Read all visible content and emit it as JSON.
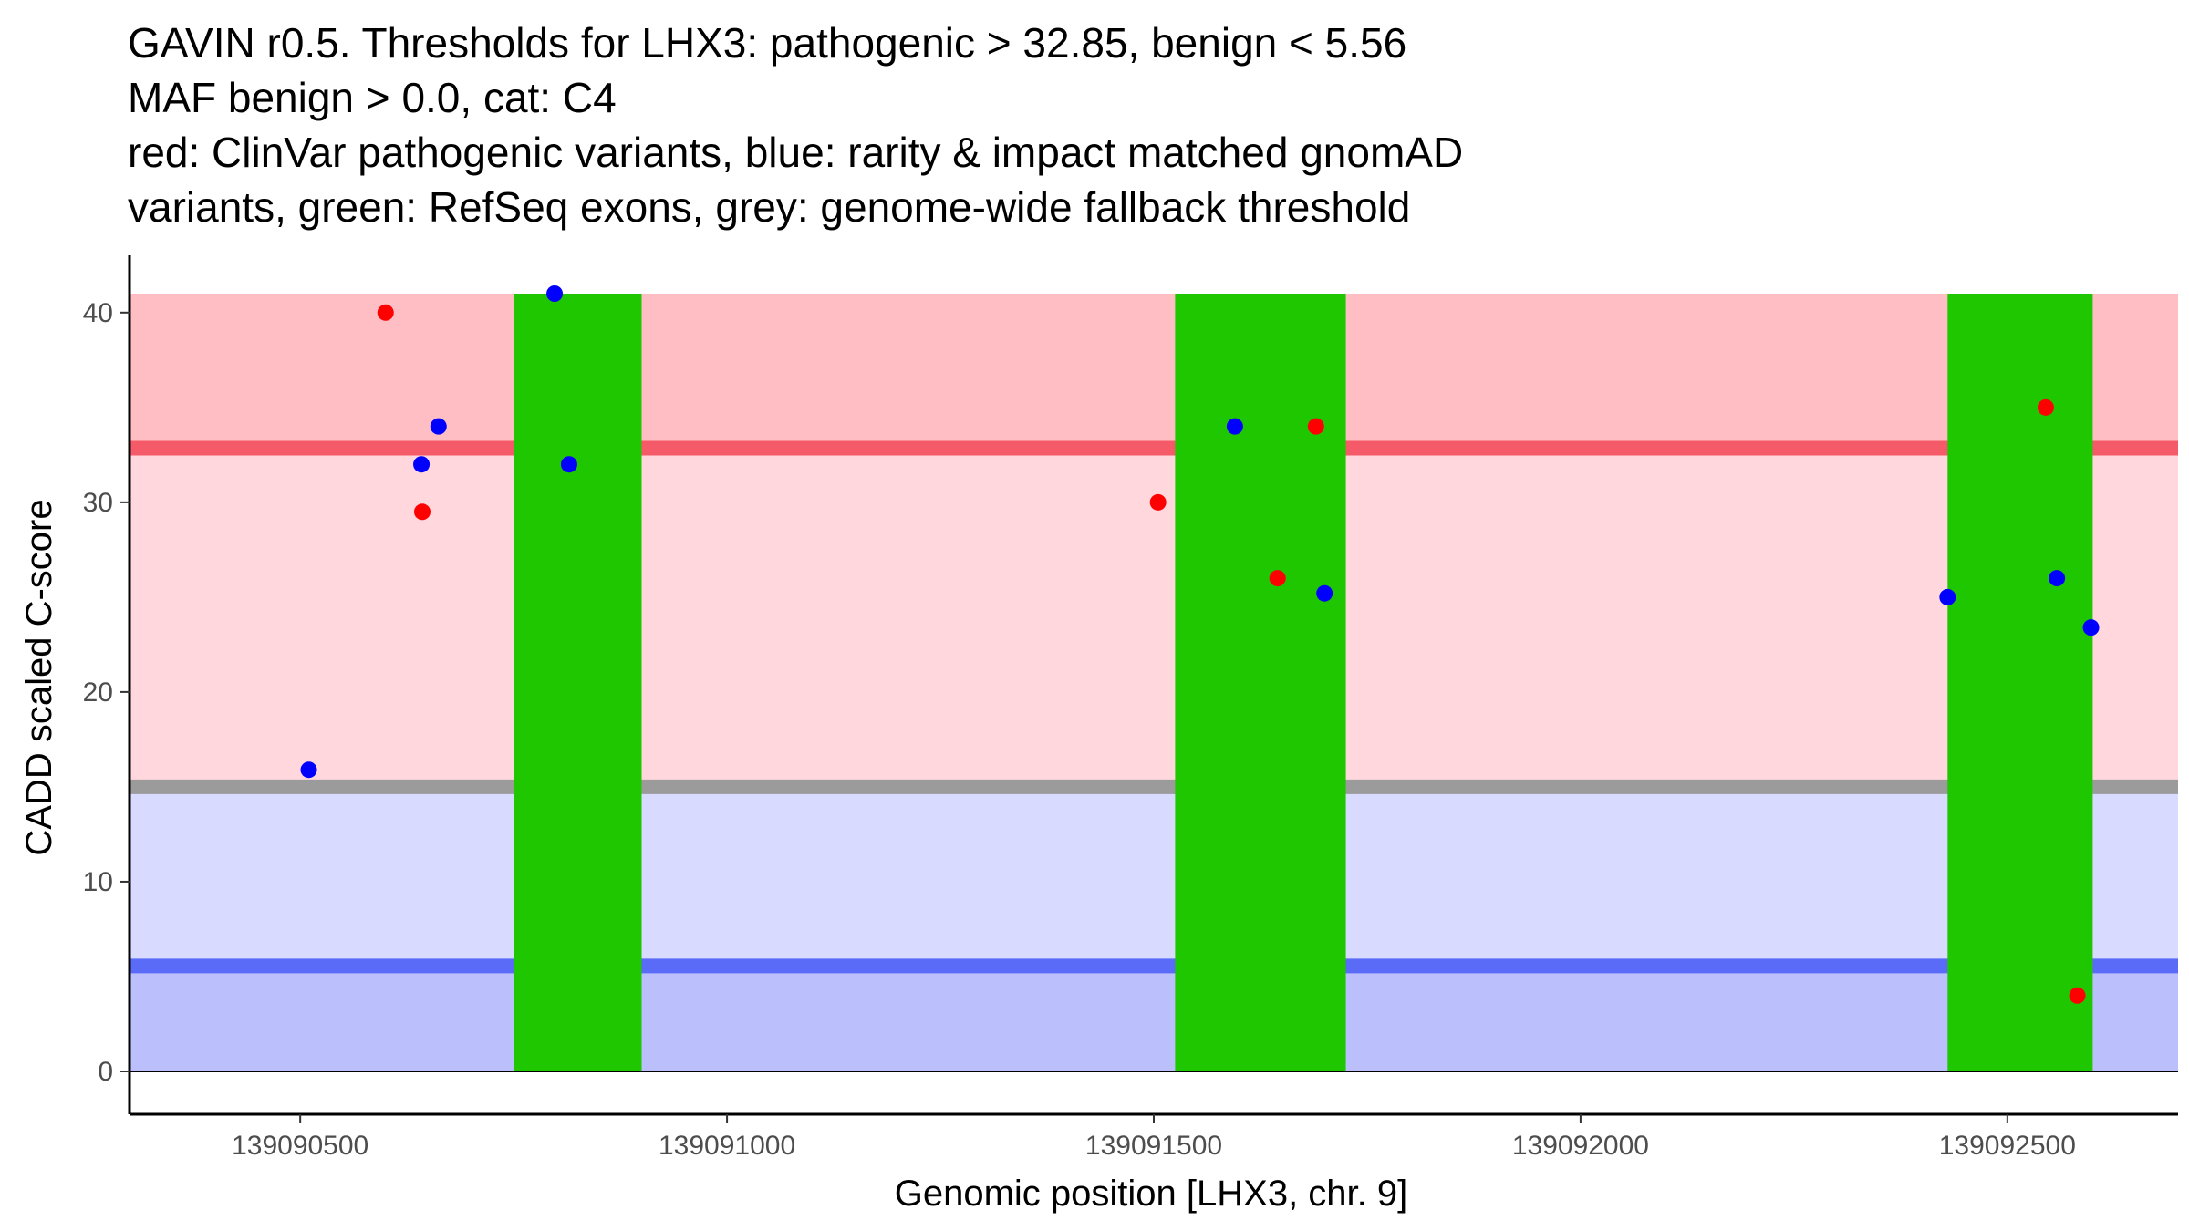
{
  "title_lines": [
    "GAVIN r0.5. Thresholds for LHX3: pathogenic > 32.85, benign < 5.56",
    "MAF benign > 0.0, cat: C4",
    "red: ClinVar pathogenic variants, blue: rarity & impact matched gnomAD",
    "variants, green: RefSeq exons, grey: genome-wide fallback threshold"
  ],
  "chart_data": {
    "type": "scatter",
    "xlabel": "Genomic position [LHX3, chr. 9]",
    "ylabel": "CADD scaled C-score",
    "xlim": [
      139090300,
      139092700
    ],
    "ylim": [
      0,
      41
    ],
    "x_ticks": [
      139090500,
      139091000,
      139091500,
      139092000,
      139092500
    ],
    "x_tick_labels": [
      "139090500",
      "139091000",
      "139091500",
      "139092000",
      "139092500"
    ],
    "y_ticks": [
      0,
      10,
      20,
      30,
      40
    ],
    "y_tick_labels": [
      "0",
      "10",
      "20",
      "30",
      "40"
    ],
    "thresholds": {
      "pathogenic": 32.85,
      "benign": 5.56,
      "genome_wide_fallback": 15.0
    },
    "bands": [
      {
        "name": "pathogenic-zone",
        "y0": 32.85,
        "y1": 41,
        "color": "#ffbdc4"
      },
      {
        "name": "between-zone",
        "y0": 15.0,
        "y1": 32.85,
        "color": "#ffd7dc"
      },
      {
        "name": "benign-fallback-zone",
        "y0": 5.56,
        "y1": 15.0,
        "color": "#d8daff"
      },
      {
        "name": "benign-zone",
        "y0": 0,
        "y1": 5.56,
        "color": "#bbbffc"
      }
    ],
    "threshold_lines": [
      {
        "name": "pathogenic-threshold-line",
        "y": 32.85,
        "color": "#f55a69"
      },
      {
        "name": "fallback-threshold-line",
        "y": 15.0,
        "color": "#9b9b9b"
      },
      {
        "name": "benign-threshold-line",
        "y": 5.56,
        "color": "#5a6cf7"
      }
    ],
    "exons": [
      {
        "start": 139090750,
        "end": 139090900
      },
      {
        "start": 139091525,
        "end": 139091725
      },
      {
        "start": 139092430,
        "end": 139092600
      }
    ],
    "exon_color": "#1ec700",
    "series": [
      {
        "name": "ClinVar pathogenic variants",
        "color": "#ff0000",
        "points": [
          {
            "x": 139090600,
            "y": 40
          },
          {
            "x": 139090643,
            "y": 29.5
          },
          {
            "x": 139091505,
            "y": 30
          },
          {
            "x": 139091645,
            "y": 26
          },
          {
            "x": 139091690,
            "y": 34
          },
          {
            "x": 139092545,
            "y": 35
          },
          {
            "x": 139092582,
            "y": 4
          }
        ]
      },
      {
        "name": "rarity & impact matched gnomAD variants",
        "color": "#0000ff",
        "points": [
          {
            "x": 139090510,
            "y": 15.9
          },
          {
            "x": 139090642,
            "y": 32
          },
          {
            "x": 139090662,
            "y": 34
          },
          {
            "x": 139090798,
            "y": 41
          },
          {
            "x": 139090815,
            "y": 32
          },
          {
            "x": 139091595,
            "y": 34
          },
          {
            "x": 139091700,
            "y": 25.2
          },
          {
            "x": 139092430,
            "y": 25
          },
          {
            "x": 139092558,
            "y": 26
          },
          {
            "x": 139092598,
            "y": 23.4
          }
        ]
      }
    ]
  }
}
